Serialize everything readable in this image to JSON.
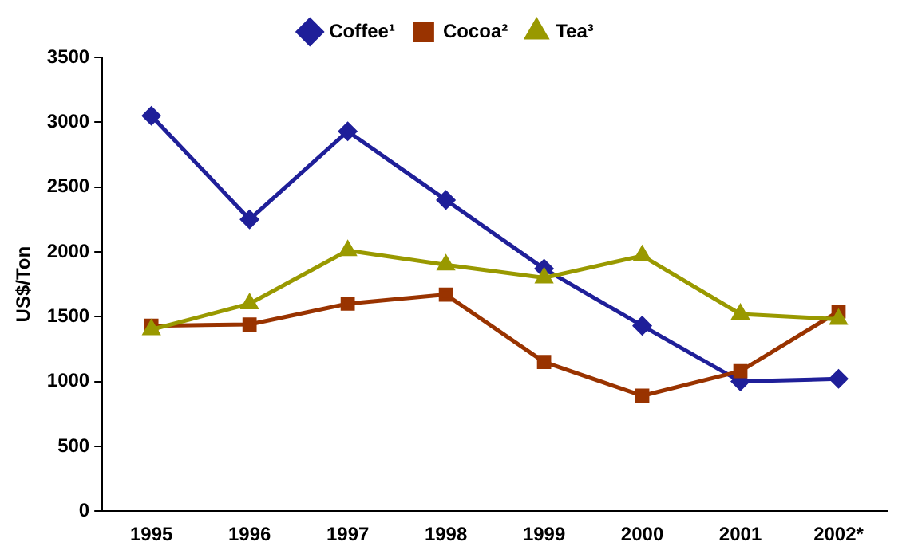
{
  "chart_data": {
    "type": "line",
    "ylabel": "US$/Ton",
    "categories": [
      "1995",
      "1996",
      "1997",
      "1998",
      "1999",
      "2000",
      "2001",
      "2002*"
    ],
    "series": [
      {
        "name": "Coffee¹",
        "color": "#1f1f99",
        "marker": "diamond",
        "values": [
          3050,
          2250,
          2930,
          2400,
          1870,
          1430,
          1000,
          1020
        ]
      },
      {
        "name": "Cocoa²",
        "color": "#993300",
        "marker": "square",
        "values": [
          1430,
          1440,
          1600,
          1670,
          1150,
          890,
          1080,
          1540
        ]
      },
      {
        "name": "Tea³",
        "color": "#999900",
        "marker": "triangle",
        "values": [
          1400,
          1600,
          2010,
          1900,
          1800,
          1970,
          1520,
          1480
        ]
      }
    ],
    "ylim": [
      0,
      3500
    ],
    "yticks": [
      0,
      500,
      1000,
      1500,
      2000,
      2500,
      3000,
      3500
    ],
    "grid": false,
    "legend": "top",
    "line_style": "solid"
  }
}
